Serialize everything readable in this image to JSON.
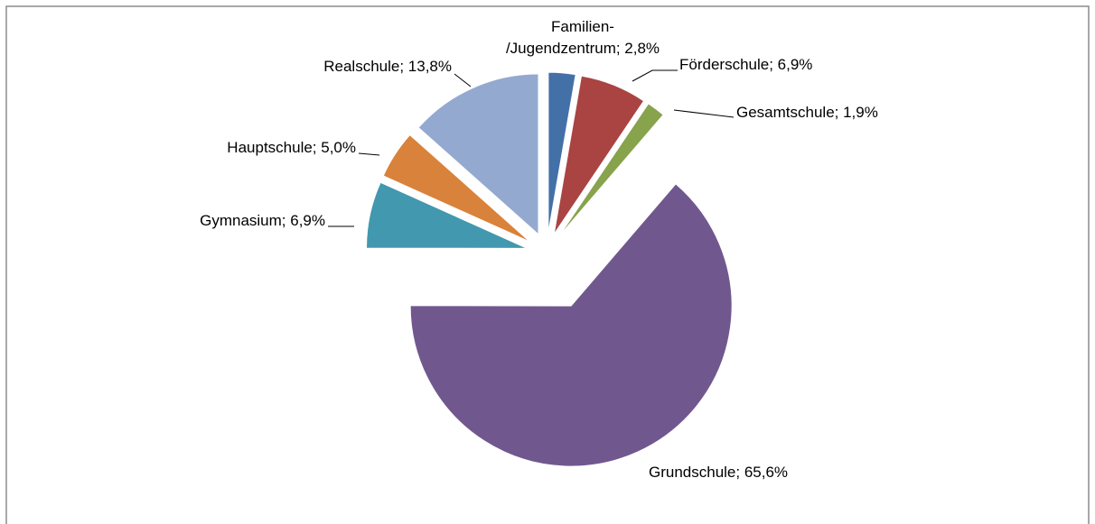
{
  "chart_data": {
    "type": "pie",
    "labels": [
      "Familien-\n/Jugendzentrum; 2,8%",
      "Förderschule; 6,9%",
      "Gesamtschule;  1,9%",
      "Grundschule; 65,6%",
      "Gymnasium; 6,9%",
      "Hauptschule; 5,0%",
      "Realschule; 13,8%"
    ],
    "values": [
      2.8,
      6.9,
      1.9,
      65.6,
      6.9,
      5.0,
      13.8
    ],
    "colors": [
      "#4470a8",
      "#a94442",
      "#87a34b",
      "#70588f",
      "#4298ae",
      "#d9823b",
      "#94a9d0"
    ]
  }
}
